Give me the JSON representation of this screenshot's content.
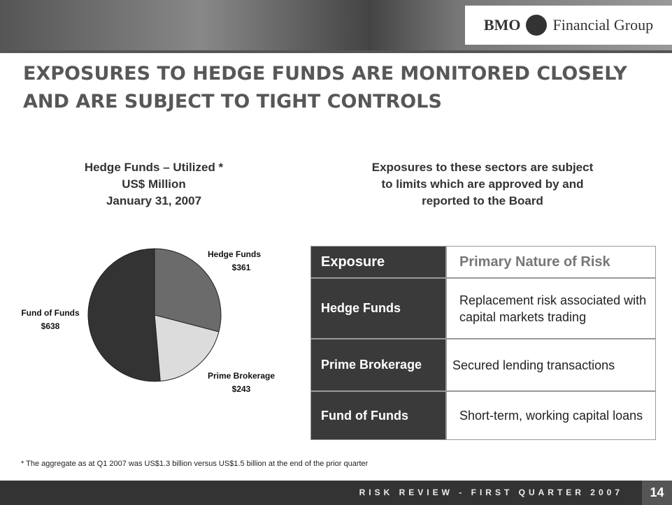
{
  "header": {
    "logo_left": "BMO",
    "logo_right": "Financial Group"
  },
  "title": [
    "EXPOSURES TO HEDGE FUNDS ARE MONITORED CLOSELY",
    "AND ARE SUBJECT TO TIGHT CONTROLS"
  ],
  "chart_data": {
    "type": "pie",
    "title": [
      "Hedge Funds – Utilized *",
      "US$ Million",
      "January 31, 2007"
    ],
    "categories": [
      "Hedge Funds",
      "Prime Brokerage",
      "Fund of Funds"
    ],
    "values": [
      361,
      243,
      638
    ],
    "value_labels": [
      "$361",
      "$243",
      "$638"
    ],
    "colors": [
      "#6b6b6b",
      "#dcdcdc",
      "#333333"
    ]
  },
  "subtitle": [
    "Exposures to these sectors are subject",
    "to limits which are approved by and",
    "reported to the Board"
  ],
  "table": {
    "header": [
      "Exposure",
      "Primary Nature of Risk"
    ],
    "rows": [
      [
        "Hedge Funds",
        "Replacement risk associated with capital markets trading"
      ],
      [
        "Prime Brokerage",
        "Secured lending transactions"
      ],
      [
        "Fund of Funds",
        "Short-term, working capital loans"
      ]
    ]
  },
  "footnote": "* The aggregate as at Q1 2007 was US$1.3 billion versus US$1.5 billion at the end of the prior quarter",
  "footer": {
    "text": "RISK REVIEW - FIRST QUARTER 2007",
    "page": "14"
  }
}
